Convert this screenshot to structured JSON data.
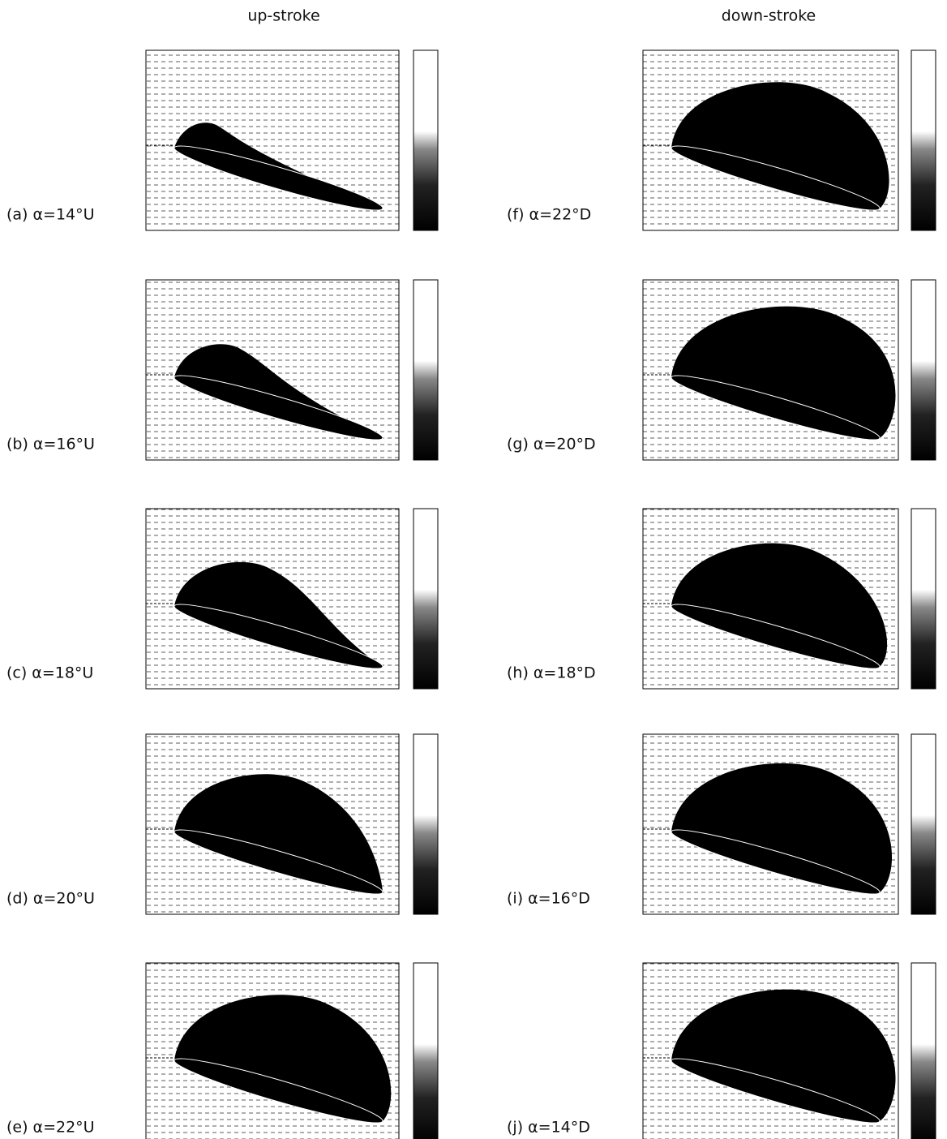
{
  "header": {
    "left": "up-stroke",
    "right": "down-stroke"
  },
  "panels": [
    {
      "label": "(a) α=14°U"
    },
    {
      "label": "(b) α=16°U"
    },
    {
      "label": "(c) α=18°U"
    },
    {
      "label": "(d) α=20°U"
    },
    {
      "label": "(e) α=22°U"
    },
    {
      "label": "(f) α=22°D"
    },
    {
      "label": "(g) α=20°D"
    },
    {
      "label": "(h) α=18°D"
    },
    {
      "label": "(i) α=16°D"
    },
    {
      "label": "(j) α=14°D"
    }
  ]
}
